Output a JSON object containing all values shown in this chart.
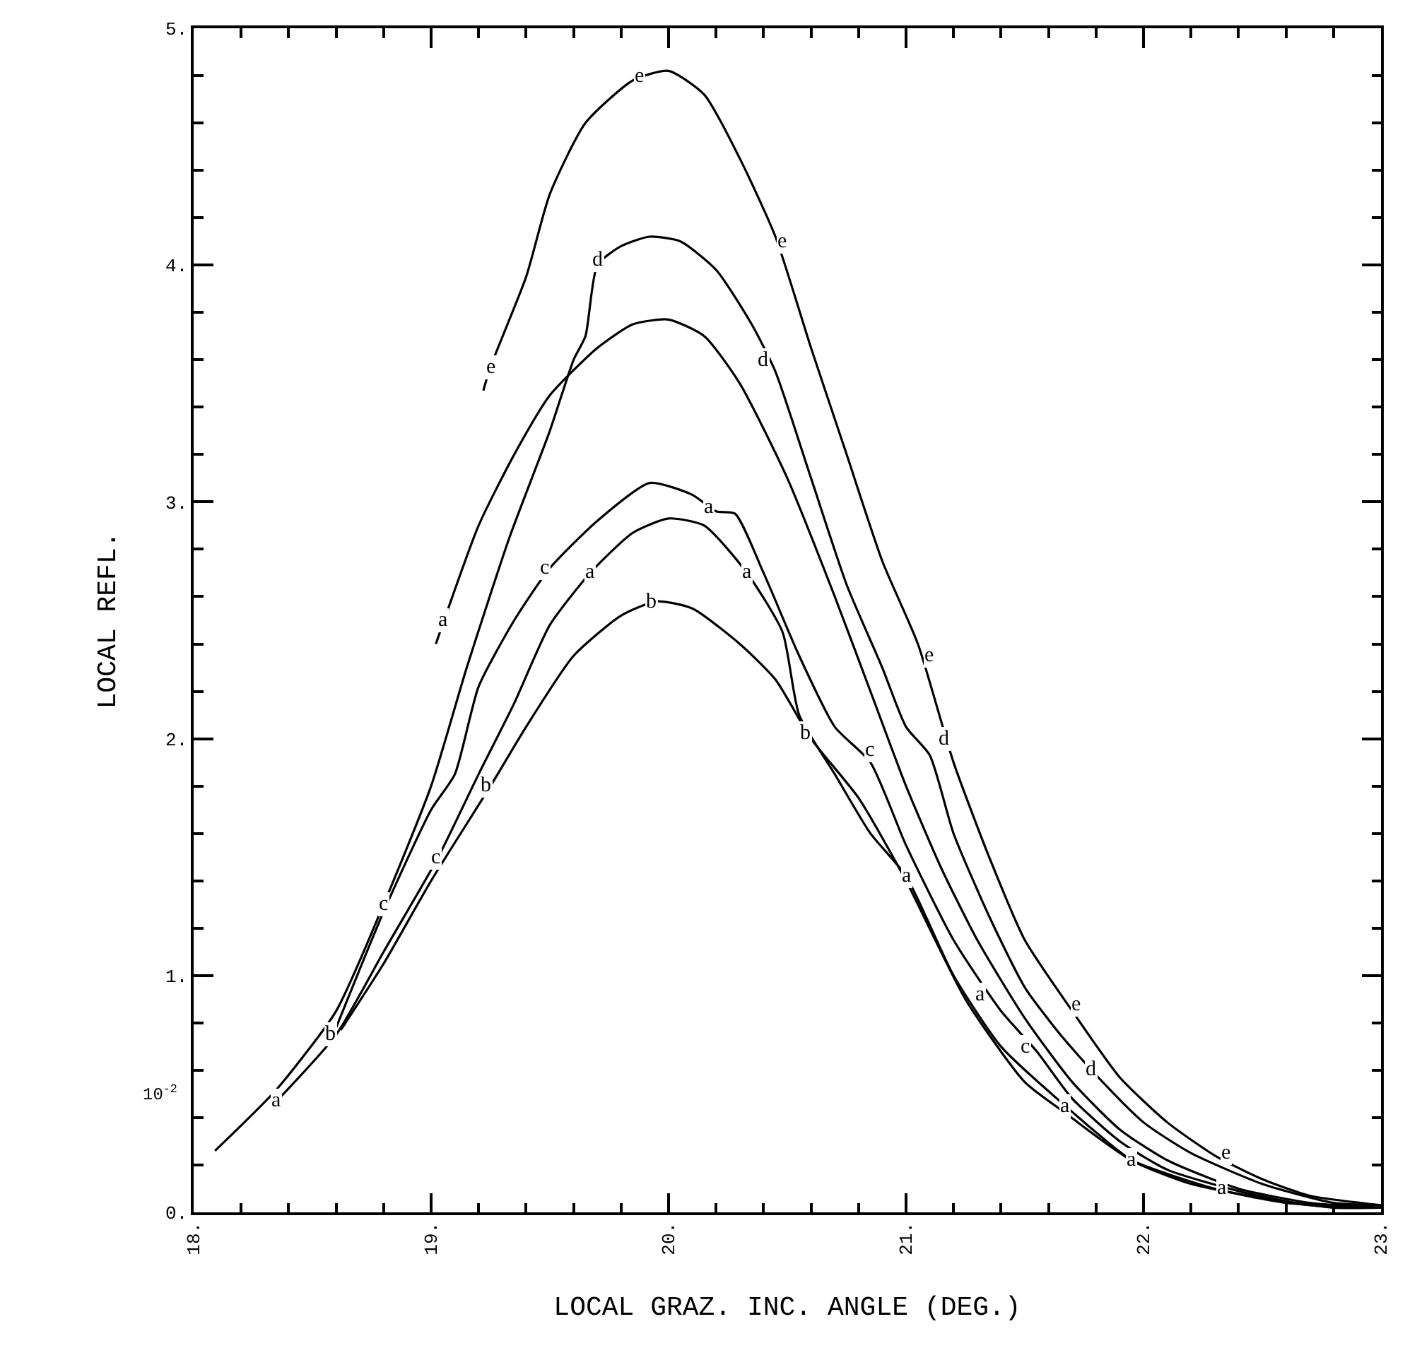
{
  "chart_data": {
    "type": "line",
    "xlabel": "LOCAL GRAZ. INC. ANGLE (DEG.)",
    "ylabel": "LOCAL REFL.",
    "xlim": [
      18,
      23
    ],
    "ylim": [
      0,
      5
    ],
    "xticks": [
      {
        "value": 18,
        "label": "18."
      },
      {
        "value": 18.2,
        "label": null
      },
      {
        "value": 18.4,
        "label": null
      },
      {
        "value": 18.6,
        "label": null
      },
      {
        "value": 18.8,
        "label": null
      },
      {
        "value": 19,
        "label": "19."
      },
      {
        "value": 19.2,
        "label": null
      },
      {
        "value": 19.4,
        "label": null
      },
      {
        "value": 19.6,
        "label": null
      },
      {
        "value": 19.8,
        "label": null
      },
      {
        "value": 20,
        "label": "20."
      },
      {
        "value": 20.2,
        "label": null
      },
      {
        "value": 20.4,
        "label": null
      },
      {
        "value": 20.6,
        "label": null
      },
      {
        "value": 20.8,
        "label": null
      },
      {
        "value": 21,
        "label": "21."
      },
      {
        "value": 21.2,
        "label": null
      },
      {
        "value": 21.4,
        "label": null
      },
      {
        "value": 21.6,
        "label": null
      },
      {
        "value": 21.8,
        "label": null
      },
      {
        "value": 22,
        "label": "22."
      },
      {
        "value": 22.2,
        "label": null
      },
      {
        "value": 22.4,
        "label": null
      },
      {
        "value": 22.6,
        "label": null
      },
      {
        "value": 22.8,
        "label": null
      },
      {
        "value": 23,
        "label": "23."
      }
    ],
    "yticks": [
      {
        "value": 0,
        "label": "0."
      },
      {
        "value": 0.2,
        "label": null
      },
      {
        "value": 0.4,
        "label": null
      },
      {
        "value": 0.6,
        "label": null
      },
      {
        "value": 0.8,
        "label": null
      },
      {
        "value": 1,
        "label": "1."
      },
      {
        "value": 1.2,
        "label": null
      },
      {
        "value": 1.4,
        "label": null
      },
      {
        "value": 1.6,
        "label": null
      },
      {
        "value": 1.8,
        "label": null
      },
      {
        "value": 2,
        "label": "2."
      },
      {
        "value": 2.2,
        "label": null
      },
      {
        "value": 2.4,
        "label": null
      },
      {
        "value": 2.6,
        "label": null
      },
      {
        "value": 2.8,
        "label": null
      },
      {
        "value": 3,
        "label": "3."
      },
      {
        "value": 3.2,
        "label": null
      },
      {
        "value": 3.4,
        "label": null
      },
      {
        "value": 3.6,
        "label": null
      },
      {
        "value": 3.8,
        "label": null
      },
      {
        "value": 4,
        "label": "4."
      },
      {
        "value": 4.2,
        "label": null
      },
      {
        "value": 4.4,
        "label": null
      },
      {
        "value": 4.6,
        "label": null
      },
      {
        "value": 4.8,
        "label": null
      },
      {
        "value": 5,
        "label": "5."
      }
    ],
    "grid": false,
    "marker": "none",
    "line_style": "solid",
    "series": [
      {
        "color": "#000000",
        "x": [
          19.22,
          19.25,
          19.4,
          19.5,
          19.65,
          19.85,
          20.0,
          20.15,
          20.3,
          20.45,
          20.6,
          20.75,
          20.9,
          21.05,
          21.2,
          21.35,
          21.5,
          21.7,
          21.9,
          22.1,
          22.3,
          22.5,
          22.7,
          23.0
        ],
        "values": [
          3.47,
          3.57,
          3.95,
          4.3,
          4.6,
          4.78,
          4.82,
          4.72,
          4.45,
          4.12,
          3.65,
          3.2,
          2.75,
          2.4,
          1.9,
          1.5,
          1.15,
          0.85,
          0.57,
          0.38,
          0.24,
          0.14,
          0.07,
          0.03
        ]
      },
      {
        "color": "#000000",
        "x": [
          18.09,
          18.35,
          18.6,
          18.8,
          19.0,
          19.15,
          19.33,
          19.5,
          19.6,
          19.65,
          19.7,
          19.8,
          19.92,
          20.05,
          20.2,
          20.35,
          20.45,
          20.6,
          20.75,
          20.9,
          21.0,
          21.1,
          21.2,
          21.35,
          21.5,
          21.65,
          21.8,
          22.0,
          22.2,
          22.5,
          22.8,
          23.0
        ],
        "values": [
          0.26,
          0.52,
          0.85,
          1.3,
          1.8,
          2.3,
          2.85,
          3.3,
          3.6,
          3.7,
          4.0,
          4.08,
          4.12,
          4.1,
          3.98,
          3.75,
          3.55,
          3.1,
          2.65,
          2.3,
          2.05,
          1.93,
          1.6,
          1.25,
          0.95,
          0.75,
          0.58,
          0.38,
          0.25,
          0.12,
          0.04,
          0.03
        ]
      },
      {
        "color": "#000000",
        "x": [
          19.02,
          19.2,
          19.35,
          19.5,
          19.7,
          19.85,
          20.0,
          20.15,
          20.3,
          20.5,
          20.7,
          20.85,
          21.0,
          21.15,
          21.3,
          21.5,
          21.7,
          21.9,
          22.1,
          22.4,
          22.7,
          23.0
        ],
        "values": [
          2.4,
          2.9,
          3.2,
          3.45,
          3.65,
          3.75,
          3.77,
          3.7,
          3.5,
          3.1,
          2.6,
          2.2,
          1.8,
          1.45,
          1.15,
          0.82,
          0.55,
          0.35,
          0.22,
          0.1,
          0.04,
          0.02
        ]
      },
      {
        "color": "#000000",
        "x": [
          18.6,
          18.8,
          19.0,
          19.1,
          19.2,
          19.35,
          19.5,
          19.7,
          19.92,
          20.1,
          20.2,
          20.28,
          20.4,
          20.55,
          20.7,
          20.85,
          21.0,
          21.2,
          21.4,
          21.55,
          21.7,
          21.9,
          22.1,
          22.4,
          22.7,
          23.0
        ],
        "values": [
          0.78,
          1.27,
          1.7,
          1.85,
          2.22,
          2.5,
          2.72,
          2.92,
          3.08,
          3.03,
          2.96,
          2.95,
          2.7,
          2.35,
          2.05,
          1.9,
          1.55,
          1.15,
          0.85,
          0.68,
          0.48,
          0.3,
          0.18,
          0.09,
          0.03,
          0.02
        ]
      },
      {
        "color": "#000000",
        "x": [
          18.35,
          18.6,
          18.8,
          19.03,
          19.2,
          19.35,
          19.5,
          19.67,
          19.85,
          20.0,
          20.15,
          20.33,
          20.48,
          20.55,
          20.7,
          20.85,
          21.0,
          21.2,
          21.4,
          21.67,
          21.95,
          22.2,
          22.5,
          22.8,
          23.0
        ],
        "values": [
          0.47,
          0.75,
          1.1,
          1.5,
          1.85,
          2.15,
          2.48,
          2.7,
          2.87,
          2.93,
          2.9,
          2.7,
          2.45,
          2.1,
          1.85,
          1.6,
          1.42,
          1.0,
          0.7,
          0.45,
          0.22,
          0.12,
          0.06,
          0.02,
          0.02
        ]
      },
      {
        "color": "#000000",
        "x": [
          18.62,
          18.8,
          19.0,
          19.25,
          19.4,
          19.6,
          19.8,
          19.95,
          20.1,
          20.3,
          20.45,
          20.6,
          20.8,
          21.0,
          21.25,
          21.5,
          21.67,
          21.95,
          22.3,
          22.6,
          22.95
        ],
        "values": [
          0.77,
          1.05,
          1.4,
          1.8,
          2.05,
          2.35,
          2.52,
          2.58,
          2.55,
          2.4,
          2.25,
          2.0,
          1.75,
          1.4,
          0.9,
          0.55,
          0.42,
          0.22,
          0.1,
          0.04,
          0.02
        ]
      }
    ],
    "annotations": [
      "10$^{-2}$",
      {
        "text": "e",
        "x": 19.25,
        "y": 3.57
      },
      {
        "text": "e",
        "x": 19.88,
        "y": 4.8
      },
      {
        "text": "e",
        "x": 20.48,
        "y": 4.1
      },
      {
        "text": "e",
        "x": 21.1,
        "y": 2.35
      },
      {
        "text": "e",
        "x": 21.72,
        "y": 0.88
      },
      {
        "text": "e",
        "x": 22.35,
        "y": 0.25
      },
      {
        "text": "d",
        "x": 19.7,
        "y": 4.02
      },
      {
        "text": "d",
        "x": 20.4,
        "y": 3.6
      },
      {
        "text": "d",
        "x": 21.16,
        "y": 2.0
      },
      {
        "text": "d",
        "x": 21.78,
        "y": 0.6
      },
      {
        "text": "a",
        "x": 19.05,
        "y": 2.5
      },
      {
        "text": "a",
        "x": 19.67,
        "y": 2.7
      },
      {
        "text": "a",
        "x": 20.33,
        "y": 2.7
      },
      {
        "text": "a",
        "x": 21.0,
        "y": 1.42
      },
      {
        "text": "a",
        "x": 21.67,
        "y": 0.45
      },
      {
        "text": "a",
        "x": 18.35,
        "y": 0.47
      },
      {
        "text": "a",
        "x": 21.95,
        "y": 0.22
      },
      {
        "text": "a",
        "x": 21.31,
        "y": 0.92
      },
      {
        "text": "a",
        "x": 20.17,
        "y": 2.98
      },
      {
        "text": "a",
        "x": 22.33,
        "y": 0.1
      },
      {
        "text": "c",
        "x": 19.48,
        "y": 2.72
      },
      {
        "text": "c",
        "x": 18.8,
        "y": 1.3
      },
      {
        "text": "c",
        "x": 20.85,
        "y": 1.95
      },
      {
        "text": "c",
        "x": 19.02,
        "y": 1.5
      },
      {
        "text": "c",
        "x": 21.5,
        "y": 0.7
      },
      {
        "text": "b",
        "x": 19.93,
        "y": 2.58
      },
      {
        "text": "b",
        "x": 19.23,
        "y": 1.8
      },
      {
        "text": "b",
        "x": 18.58,
        "y": 0.75
      },
      {
        "text": "b",
        "x": 20.58,
        "y": 2.02
      }
    ]
  }
}
